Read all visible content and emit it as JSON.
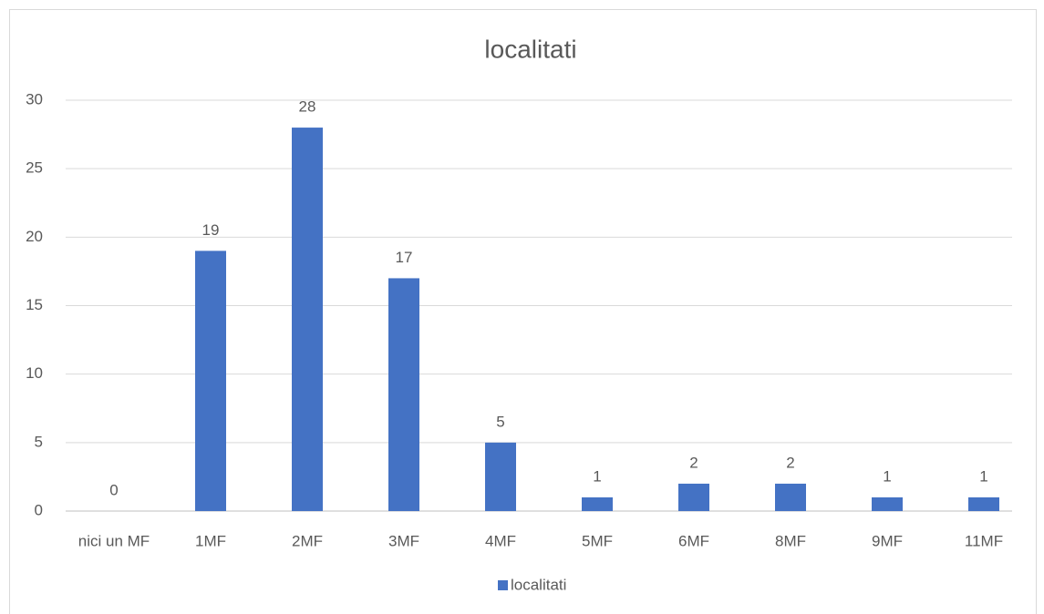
{
  "chart_data": {
    "type": "bar",
    "title": "localitati",
    "categories": [
      "nici un MF",
      "1MF",
      "2MF",
      "3MF",
      "4MF",
      "5MF",
      "6MF",
      "8MF",
      "9MF",
      "11MF"
    ],
    "series": [
      {
        "name": "localitati",
        "color": "#4472c4",
        "values": [
          0,
          19,
          28,
          17,
          5,
          1,
          2,
          2,
          1,
          1
        ]
      }
    ],
    "ylim": [
      0,
      30
    ],
    "yticks": [
      0,
      5,
      10,
      15,
      20,
      25,
      30
    ],
    "grid": true,
    "legend": "bottom",
    "data_labels": true
  }
}
